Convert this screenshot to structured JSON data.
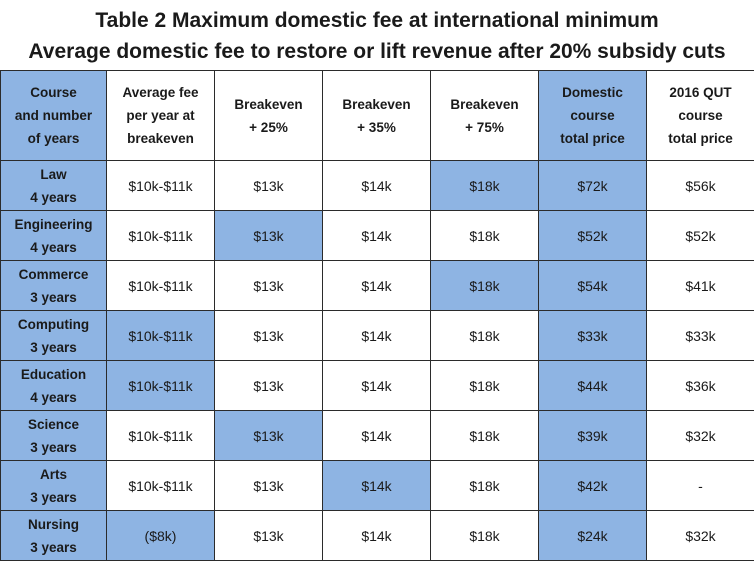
{
  "title": {
    "line1": "Table 2   Maximum domestic fee at international minimum",
    "line2": "Average domestic fee to restore or lift revenue after 20% subsidy cuts"
  },
  "colors": {
    "highlight": "#8eb4e3",
    "plain": "#ffffff",
    "border": "#2b2b2b"
  },
  "columns": [
    {
      "label": "Course\nand number\nof years",
      "highlight": true
    },
    {
      "label": "Average fee\nper year at\nbreakeven",
      "highlight": false
    },
    {
      "label": "Breakeven\n+ 25%",
      "highlight": false
    },
    {
      "label": "Breakeven\n+ 35%",
      "highlight": false
    },
    {
      "label": "Breakeven\n+ 75%",
      "highlight": false
    },
    {
      "label": "Domestic\ncourse\ntotal price",
      "highlight": true
    },
    {
      "label": "2016 QUT\ncourse\ntotal price",
      "highlight": false
    }
  ],
  "rows": [
    {
      "course": "Law",
      "years": "4 years",
      "cells": [
        "$10k-$11k",
        "$13k",
        "$14k",
        "$18k",
        "$72k",
        "$56k"
      ],
      "highlight": [
        false,
        false,
        false,
        true,
        true,
        false
      ]
    },
    {
      "course": "Engineering",
      "years": "4 years",
      "cells": [
        "$10k-$11k",
        "$13k",
        "$14k",
        "$18k",
        "$52k",
        "$52k"
      ],
      "highlight": [
        false,
        true,
        false,
        false,
        true,
        false
      ]
    },
    {
      "course": "Commerce",
      "years": "3 years",
      "cells": [
        "$10k-$11k",
        "$13k",
        "$14k",
        "$18k",
        "$54k",
        "$41k"
      ],
      "highlight": [
        false,
        false,
        false,
        true,
        true,
        false
      ]
    },
    {
      "course": "Computing",
      "years": "3 years",
      "cells": [
        "$10k-$11k",
        "$13k",
        "$14k",
        "$18k",
        "$33k",
        "$33k"
      ],
      "highlight": [
        true,
        false,
        false,
        false,
        true,
        false
      ]
    },
    {
      "course": "Education",
      "years": "4 years",
      "cells": [
        "$10k-$11k",
        "$13k",
        "$14k",
        "$18k",
        "$44k",
        "$36k"
      ],
      "highlight": [
        true,
        false,
        false,
        false,
        true,
        false
      ]
    },
    {
      "course": "Science",
      "years": "3 years",
      "cells": [
        "$10k-$11k",
        "$13k",
        "$14k",
        "$18k",
        "$39k",
        "$32k"
      ],
      "highlight": [
        false,
        true,
        false,
        false,
        true,
        false
      ]
    },
    {
      "course": "Arts",
      "years": "3 years",
      "cells": [
        "$10k-$11k",
        "$13k",
        "$14k",
        "$18k",
        "$42k",
        "-"
      ],
      "highlight": [
        false,
        false,
        true,
        false,
        true,
        false
      ]
    },
    {
      "course": "Nursing",
      "years": "3 years",
      "cells": [
        "($8k)",
        "$13k",
        "$14k",
        "$18k",
        "$24k",
        "$32k"
      ],
      "highlight": [
        true,
        false,
        false,
        false,
        true,
        false
      ]
    }
  ]
}
